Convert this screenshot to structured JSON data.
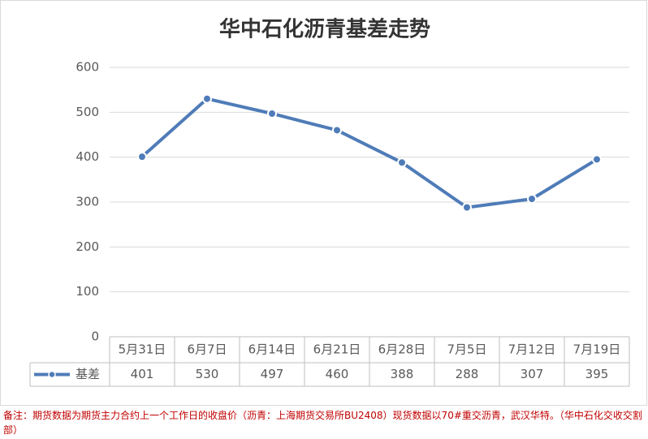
{
  "chart_data": {
    "type": "line",
    "title": "华中石化沥青基差走势",
    "categories": [
      "5月31日",
      "6月7日",
      "6月14日",
      "6月21日",
      "6月28日",
      "7月5日",
      "7月12日",
      "7月19日"
    ],
    "series": [
      {
        "name": "基差",
        "color": "#4f7cb8",
        "values": [
          401,
          530,
          497,
          460,
          388,
          288,
          307,
          395
        ]
      }
    ],
    "ylim": [
      0,
      600
    ],
    "yticks": [
      0,
      100,
      200,
      300,
      400,
      500,
      600
    ],
    "grid": true
  },
  "footnote": "备注：期货数据为期货主力合约上一个工作日的收盘价（沥青：上海期货交易所BU2408）现货数据以70#重交沥青，武汉华特。（华中石化交收交割部）"
}
